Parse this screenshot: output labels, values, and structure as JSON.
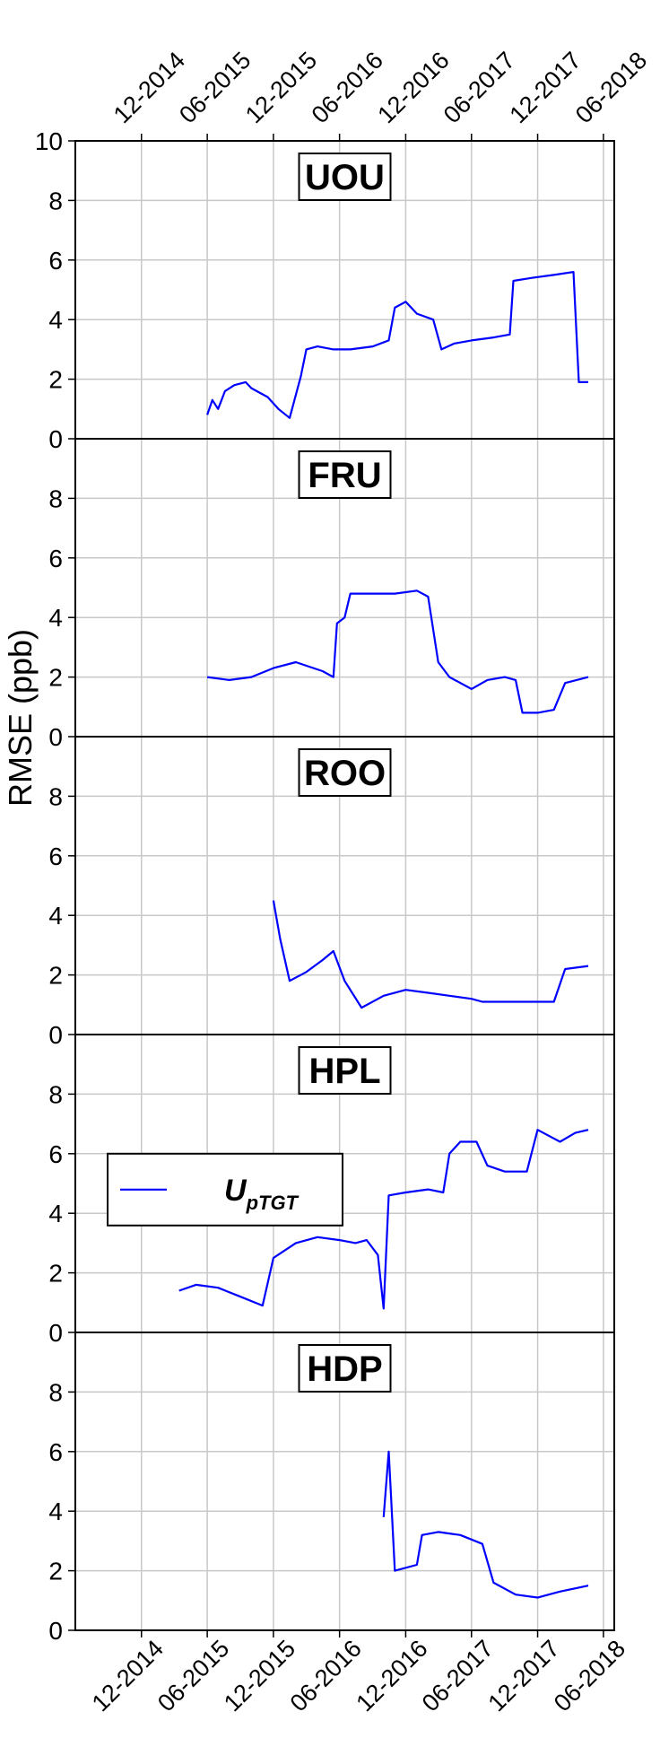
{
  "chart_data": {
    "type": "line",
    "ylabel": "RMSE (ppb)",
    "x_ticks": [
      "12-2014",
      "06-2015",
      "12-2015",
      "06-2016",
      "12-2016",
      "06-2017",
      "12-2017",
      "06-2018"
    ],
    "xlim": [
      "2014-06",
      "2018-07"
    ],
    "ylim": [
      0,
      10
    ],
    "y_ticks_top_panel": [
      0,
      2,
      4,
      6,
      8,
      10
    ],
    "y_ticks_other_panels": [
      0,
      2,
      4,
      6,
      8
    ],
    "grid": true,
    "series_color": "#0000ff",
    "legend": {
      "label_main": "U",
      "label_sub": "pTGT",
      "panel": "HPL",
      "placement": "middle-left"
    },
    "panels": [
      {
        "title": "UOU",
        "series": [
          {
            "name": "UpTGT",
            "points": [
              [
                "2015-06-01",
                0.8
              ],
              [
                "2015-06-15",
                1.3
              ],
              [
                "2015-07-01",
                1.0
              ],
              [
                "2015-07-20",
                1.6
              ],
              [
                "2015-08-15",
                1.8
              ],
              [
                "2015-09-15",
                1.9
              ],
              [
                "2015-10-01",
                1.7
              ],
              [
                "2015-11-15",
                1.4
              ],
              [
                "2015-12-15",
                1.0
              ],
              [
                "2016-01-15",
                0.7
              ],
              [
                "2016-02-15",
                2.1
              ],
              [
                "2016-03-01",
                3.0
              ],
              [
                "2016-04-01",
                3.1
              ],
              [
                "2016-05-15",
                3.0
              ],
              [
                "2016-07-01",
                3.0
              ],
              [
                "2016-09-01",
                3.1
              ],
              [
                "2016-10-15",
                3.3
              ],
              [
                "2016-11-01",
                4.4
              ],
              [
                "2016-12-01",
                4.6
              ],
              [
                "2017-01-01",
                4.2
              ],
              [
                "2017-02-15",
                4.0
              ],
              [
                "2017-03-10",
                3.0
              ],
              [
                "2017-04-15",
                3.2
              ],
              [
                "2017-06-01",
                3.3
              ],
              [
                "2017-08-01",
                3.4
              ],
              [
                "2017-09-15",
                3.5
              ],
              [
                "2017-09-25",
                5.3
              ],
              [
                "2017-11-15",
                5.4
              ],
              [
                "2018-01-15",
                5.5
              ],
              [
                "2018-03-10",
                5.6
              ],
              [
                "2018-03-25",
                1.9
              ],
              [
                "2018-04-20",
                1.9
              ]
            ]
          }
        ]
      },
      {
        "title": "FRU",
        "series": [
          {
            "name": "UpTGT",
            "points": [
              [
                "2015-06-01",
                2.0
              ],
              [
                "2015-08-01",
                1.9
              ],
              [
                "2015-10-01",
                2.0
              ],
              [
                "2015-12-01",
                2.3
              ],
              [
                "2016-02-01",
                2.5
              ],
              [
                "2016-04-15",
                2.2
              ],
              [
                "2016-05-15",
                2.0
              ],
              [
                "2016-05-25",
                3.8
              ],
              [
                "2016-06-15",
                4.0
              ],
              [
                "2016-07-01",
                4.8
              ],
              [
                "2016-09-01",
                4.8
              ],
              [
                "2016-11-01",
                4.8
              ],
              [
                "2017-01-01",
                4.9
              ],
              [
                "2017-02-01",
                4.7
              ],
              [
                "2017-03-01",
                2.5
              ],
              [
                "2017-04-01",
                2.0
              ],
              [
                "2017-06-01",
                1.6
              ],
              [
                "2017-07-15",
                1.9
              ],
              [
                "2017-09-01",
                2.0
              ],
              [
                "2017-10-01",
                1.9
              ],
              [
                "2017-10-20",
                0.8
              ],
              [
                "2017-12-01",
                0.8
              ],
              [
                "2018-01-15",
                0.9
              ],
              [
                "2018-02-15",
                1.8
              ],
              [
                "2018-04-20",
                2.0
              ]
            ]
          }
        ]
      },
      {
        "title": "ROO",
        "series": [
          {
            "name": "UpTGT",
            "points": [
              [
                "2015-12-01",
                4.5
              ],
              [
                "2015-12-20",
                3.2
              ],
              [
                "2016-01-15",
                1.8
              ],
              [
                "2016-03-01",
                2.1
              ],
              [
                "2016-04-15",
                2.5
              ],
              [
                "2016-05-15",
                2.8
              ],
              [
                "2016-06-15",
                1.8
              ],
              [
                "2016-08-01",
                0.9
              ],
              [
                "2016-10-01",
                1.3
              ],
              [
                "2016-12-01",
                1.5
              ],
              [
                "2017-02-01",
                1.4
              ],
              [
                "2017-04-01",
                1.3
              ],
              [
                "2017-06-01",
                1.2
              ],
              [
                "2017-07-01",
                1.1
              ],
              [
                "2018-01-15",
                1.1
              ],
              [
                "2018-02-15",
                2.2
              ],
              [
                "2018-04-20",
                2.3
              ]
            ]
          }
        ]
      },
      {
        "title": "HPL",
        "series": [
          {
            "name": "UpTGT",
            "points": [
              [
                "2015-03-15",
                1.4
              ],
              [
                "2015-05-01",
                1.6
              ],
              [
                "2015-07-01",
                1.5
              ],
              [
                "2015-09-01",
                1.2
              ],
              [
                "2015-11-01",
                0.9
              ],
              [
                "2015-12-01",
                2.5
              ],
              [
                "2016-02-01",
                3.0
              ],
              [
                "2016-04-01",
                3.2
              ],
              [
                "2016-06-01",
                3.1
              ],
              [
                "2016-07-15",
                3.0
              ],
              [
                "2016-08-15",
                3.1
              ],
              [
                "2016-09-15",
                2.6
              ],
              [
                "2016-10-01",
                0.8
              ],
              [
                "2016-10-15",
                4.6
              ],
              [
                "2016-12-01",
                4.7
              ],
              [
                "2017-02-01",
                4.8
              ],
              [
                "2017-03-15",
                4.7
              ],
              [
                "2017-04-01",
                6.0
              ],
              [
                "2017-05-01",
                6.4
              ],
              [
                "2017-06-15",
                6.4
              ],
              [
                "2017-07-15",
                5.6
              ],
              [
                "2017-09-01",
                5.4
              ],
              [
                "2017-11-01",
                5.4
              ],
              [
                "2017-12-01",
                6.8
              ],
              [
                "2018-02-01",
                6.4
              ],
              [
                "2018-03-15",
                6.7
              ],
              [
                "2018-04-20",
                6.8
              ]
            ]
          }
        ]
      },
      {
        "title": "HDP",
        "series": [
          {
            "name": "UpTGT",
            "points": [
              [
                "2016-10-01",
                3.8
              ],
              [
                "2016-10-15",
                6.0
              ],
              [
                "2016-11-01",
                2.0
              ],
              [
                "2017-01-01",
                2.2
              ],
              [
                "2017-01-15",
                3.2
              ],
              [
                "2017-03-01",
                3.3
              ],
              [
                "2017-05-01",
                3.2
              ],
              [
                "2017-07-01",
                2.9
              ],
              [
                "2017-08-01",
                1.6
              ],
              [
                "2017-10-01",
                1.2
              ],
              [
                "2017-12-01",
                1.1
              ],
              [
                "2018-02-01",
                1.3
              ],
              [
                "2018-04-20",
                1.5
              ]
            ]
          }
        ]
      }
    ]
  }
}
